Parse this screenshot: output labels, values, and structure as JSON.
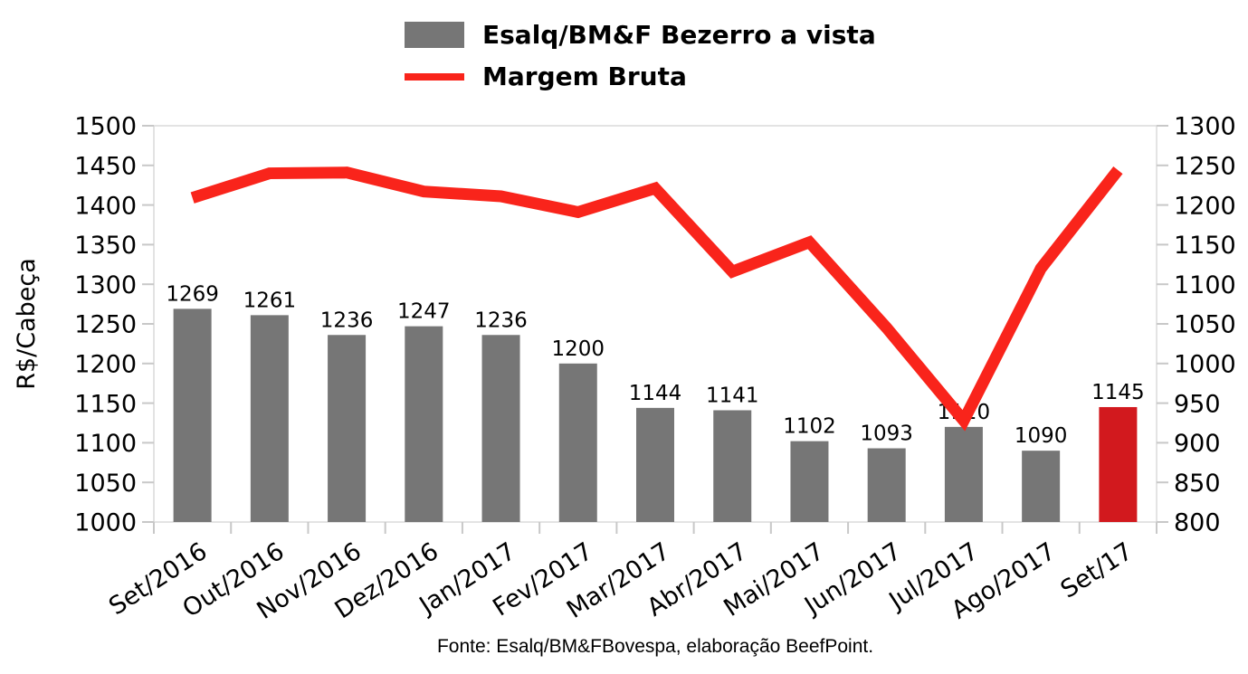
{
  "legend": {
    "items": [
      {
        "label": "Esalq/BM&F Bezerro a vista",
        "swatch": "bar"
      },
      {
        "label": "Margem Bruta",
        "swatch": "line"
      }
    ]
  },
  "footer": {
    "text": "Fonte: Esalq/BM&FBovespa, elaboração BeefPoint."
  },
  "chart_data": {
    "type": "bar",
    "subtype": "bar+line combo, dual y-axis",
    "categories": [
      "Set/2016",
      "Out/2016",
      "Nov/2016",
      "Dez/2016",
      "Jan/2017",
      "Fev/2017",
      "Mar/2017",
      "Abr/2017",
      "Mai/2017",
      "Jun/2017",
      "Jul/2017",
      "Ago/2017",
      "Set/17"
    ],
    "series": [
      {
        "name": "Esalq/BM&F Bezerro a vista",
        "type": "bar",
        "axis": "left",
        "values": [
          1269,
          1261,
          1236,
          1247,
          1236,
          1200,
          1144,
          1141,
          1102,
          1093,
          1120,
          1090,
          1145
        ],
        "data_labels": [
          1269,
          1261,
          1236,
          1247,
          1236,
          1200,
          1144,
          1141,
          1102,
          1093,
          1120,
          1090,
          1145
        ],
        "highlight_last": true
      },
      {
        "name": "Margem Bruta",
        "type": "line",
        "axis": "right",
        "values": [
          1209,
          1240,
          1241,
          1217,
          1211,
          1191,
          1221,
          1116,
          1153,
          1045,
          928,
          1120,
          1244
        ]
      }
    ],
    "left_axis": {
      "min": 1000,
      "max": 1500,
      "step": 50,
      "title": "R$/Cabeça"
    },
    "right_axis": {
      "min": 800,
      "max": 1300,
      "step": 50,
      "title": ""
    },
    "grid": false,
    "legend_position": "top-center",
    "colors": {
      "bar": "#767676",
      "bar_highlight": "#d2191e",
      "line": "#f9241b",
      "axis": "#c8c8c8",
      "plot_border": "#dadada",
      "text": "#000000"
    }
  }
}
